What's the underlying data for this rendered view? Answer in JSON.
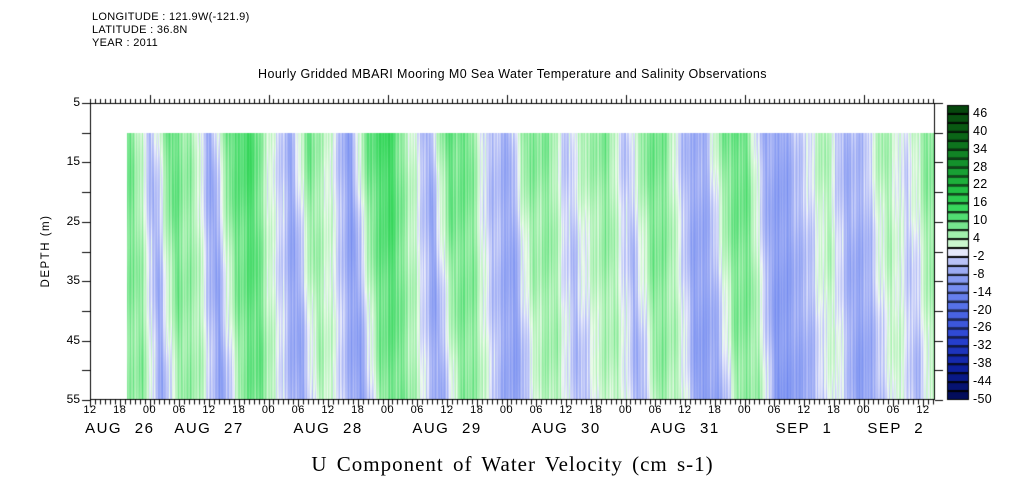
{
  "info": {
    "longitude": "LONGITUDE : 121.9W(-121.9)",
    "latitude": "LATITUDE : 36.8N",
    "year": "YEAR : 2011"
  },
  "title": "Hourly Gridded MBARI Mooring M0 Sea Water Temperature and Salinity Observations",
  "bottom_title": "U Component of Water Velocity (cm s-1)",
  "y_axis": {
    "label": "DEPTH (m)",
    "major_ticks": [
      5,
      15,
      25,
      35,
      45,
      55
    ],
    "minor_ticks": [
      10,
      20,
      30,
      40,
      50
    ],
    "range": [
      5,
      55
    ]
  },
  "x_axis": {
    "hour_labels": [
      "12",
      "18",
      "00",
      "06",
      "12",
      "18",
      "00",
      "06",
      "12",
      "18",
      "00",
      "06",
      "12",
      "18",
      "00",
      "06",
      "12",
      "18",
      "00",
      "06",
      "12",
      "18",
      "00",
      "06",
      "12",
      "18",
      "00",
      "06",
      "12"
    ],
    "hour_step": 6,
    "minor_step_hours": 1,
    "range_hours": [
      0,
      170.4
    ],
    "start_label": "AUG 26 12:00",
    "date_labels": [
      {
        "text": "AUG 26",
        "center_hour": 6
      },
      {
        "text": "AUG 27",
        "center_hour": 24
      },
      {
        "text": "AUG 28",
        "center_hour": 48
      },
      {
        "text": "AUG 29",
        "center_hour": 72
      },
      {
        "text": "AUG 30",
        "center_hour": 96
      },
      {
        "text": "AUG 31",
        "center_hour": 120
      },
      {
        "text": "SEP 1",
        "center_hour": 144
      },
      {
        "text": "SEP 2",
        "center_hour": 162.5
      }
    ]
  },
  "colorbar": {
    "labels": [
      46,
      40,
      34,
      28,
      22,
      16,
      10,
      4,
      -2,
      -8,
      -14,
      -20,
      -26,
      -32,
      -38,
      -44,
      -50
    ],
    "vmin": -50,
    "vmax": 49,
    "cell_size": 3,
    "n_cells": 33
  },
  "chart_data": {
    "type": "heatmap",
    "title": "Hourly Gridded MBARI Mooring M0 Sea Water Temperature and Salinity Observations",
    "xlabel": "U Component of Water Velocity (cm s-1)",
    "ylabel": "DEPTH (m)",
    "units": "cm s-1",
    "x_axis_hours_from": "AUG 26 12:00",
    "x_range_hours": [
      0,
      170.4
    ],
    "data_start_hour": 7.4,
    "depth_range_m": [
      10,
      55
    ],
    "ylim": [
      5,
      55
    ],
    "colorbar_range": [
      -50,
      49
    ],
    "legend_position": "right",
    "grid": false,
    "depths": [
      10,
      25,
      40,
      55
    ],
    "time_hours": [
      8,
      12,
      16,
      20,
      24,
      28,
      32,
      36,
      40,
      44,
      48,
      52,
      56,
      60,
      64,
      68,
      72,
      76,
      80,
      84,
      88,
      92,
      96,
      100,
      104,
      108,
      112,
      116,
      120,
      124,
      128,
      132,
      136,
      140,
      144,
      148,
      152,
      156,
      160,
      164,
      168
    ],
    "series": [
      {
        "name": "depth_10m",
        "values": [
          9,
          -5,
          10,
          6,
          -7,
          10,
          13,
          2,
          -6,
          9,
          2,
          -8,
          10,
          14,
          4,
          -6,
          10,
          9,
          -3,
          -6,
          8,
          7,
          -3,
          6,
          7,
          -4,
          9,
          7,
          -6,
          -5,
          9,
          9,
          -7,
          -7,
          -1,
          5,
          -6,
          -3,
          6,
          -2,
          7
        ]
      },
      {
        "name": "depth_25m",
        "values": [
          8,
          -6,
          9,
          5,
          -8,
          9,
          11,
          0,
          -7,
          7,
          0,
          -9,
          9,
          12,
          3,
          -7,
          9,
          7,
          -4,
          -7,
          6,
          6,
          -4,
          4,
          6,
          -5,
          8,
          6,
          -7,
          -6,
          8,
          8,
          -8,
          -8,
          -2,
          4,
          -7,
          -4,
          5,
          -3,
          6
        ]
      },
      {
        "name": "depth_40m",
        "values": [
          7,
          -6,
          8,
          4,
          -8,
          8,
          10,
          -1,
          -8,
          6,
          -1,
          -9,
          8,
          10,
          2,
          -8,
          8,
          6,
          -5,
          -8,
          5,
          5,
          -5,
          3,
          5,
          -6,
          7,
          5,
          -8,
          -7,
          7,
          7,
          -9,
          -8,
          -3,
          3,
          -8,
          -5,
          4,
          -4,
          5
        ]
      },
      {
        "name": "depth_55m",
        "values": [
          6,
          -7,
          7,
          3,
          -9,
          7,
          9,
          -2,
          -8,
          5,
          -2,
          -10,
          7,
          9,
          1,
          -8,
          7,
          5,
          -6,
          -8,
          4,
          4,
          -6,
          2,
          4,
          -7,
          6,
          4,
          -9,
          -8,
          6,
          6,
          -10,
          -9,
          -4,
          2,
          -9,
          -6,
          3,
          -5,
          4
        ]
      }
    ],
    "colormap": [
      [
        -50,
        "#020a50"
      ],
      [
        -40,
        "#0c1e9b"
      ],
      [
        -30,
        "#2740cf"
      ],
      [
        -20,
        "#4e6ae6"
      ],
      [
        -14,
        "#6f87ef"
      ],
      [
        -10,
        "#8499f2"
      ],
      [
        -7,
        "#98a8f4"
      ],
      [
        -4,
        "#b3bdf7"
      ],
      [
        -1.5,
        "#d5daf9"
      ],
      [
        -0.2,
        "#eceefc"
      ],
      [
        0.2,
        "#eefbec"
      ],
      [
        1.5,
        "#d9f8da"
      ],
      [
        4,
        "#b5f3bb"
      ],
      [
        7,
        "#8deb9d"
      ],
      [
        10,
        "#5fe07e"
      ],
      [
        14,
        "#3bd95f"
      ],
      [
        20,
        "#22c145"
      ],
      [
        30,
        "#148f2b"
      ],
      [
        40,
        "#0a5f14"
      ],
      [
        49,
        "#06430c"
      ]
    ]
  }
}
